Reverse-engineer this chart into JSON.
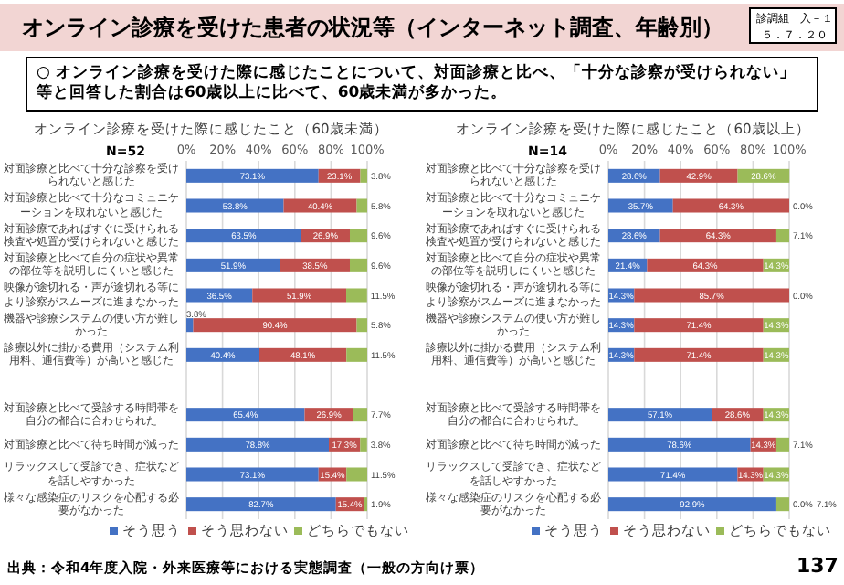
{
  "chart_data": [
    {
      "type": "bar",
      "orientation": "horizontal",
      "stacked": true,
      "title": "オンライン診療を受けた際に感じたこと（60歳未満）",
      "annotations": [
        "オンライン診療を受けた患者の状況等（インターネット調査、年齢別）",
        "診調組　入－１",
        "５．７．２０",
        "○ オンライン診療を受けた際に感じたことについて、対面診療と比べ、「十分な診察が受けられない」等と回答した割合は60歳以上に比べて、60歳未満が多かった。",
        "N=52"
      ],
      "categories": [
        "対面診療と比べて十分な診察を受けられないと感じた",
        "対面診療と比べて十分なコミュニケーションを取れないと感じた",
        "対面診療であればすぐに受けられる検査や処置が受けられないと感じた",
        "対面診療と比べて自分の症状や異常の部位等を説明しにくいと感じた",
        "映像が途切れる・声が途切れる等により診察がスムーズに進まなかった",
        "機器や診療システムの使い方が難しかった",
        "診療以外に掛かる費用（システム利用料、通信費等）が高いと感じた",
        null,
        "対面診療と比べて受診する時間帯を自分の都合に合わせられた",
        "対面診療と比べて待ち時間が減った",
        "リラックスして受診でき、症状などを話しやすかった",
        "様々な感染症のリスクを心配する必要がなかった"
      ],
      "series": [
        {
          "name": "そう思う",
          "color": "#4472c4",
          "values": [
            73.1,
            53.8,
            63.5,
            51.9,
            36.5,
            3.8,
            40.4,
            null,
            65.4,
            78.8,
            73.1,
            82.7
          ],
          "value_labels": [
            "73.1%",
            "53.8%",
            "63.5%",
            "51.9%",
            "36.5%",
            "3.8%",
            "40.4%",
            null,
            "65.4%",
            "78.8%",
            "73.1%",
            "82.7%"
          ]
        },
        {
          "name": "そう思わない",
          "color": "#c0504d",
          "values": [
            23.1,
            40.4,
            26.9,
            38.5,
            51.9,
            90.4,
            48.1,
            null,
            26.9,
            17.3,
            15.4,
            15.4
          ],
          "value_labels": [
            "23.1%",
            "40.4%",
            "26.9%",
            "38.5%",
            "51.9%",
            "90.4%",
            "48.1%",
            null,
            "26.9%",
            "17.3%",
            "15.4%",
            "15.4%"
          ]
        },
        {
          "name": "どちらでもない",
          "color": "#9bbb59",
          "values": [
            3.8,
            5.8,
            9.6,
            9.6,
            11.5,
            5.8,
            11.5,
            null,
            7.7,
            3.8,
            11.5,
            1.9
          ],
          "value_labels": [
            "3.8%",
            "5.8%",
            "9.6%",
            "9.6%",
            "11.5%",
            "5.8%",
            "11.5%",
            null,
            "7.7%",
            "3.8%",
            "11.5%",
            "1.9%"
          ]
        }
      ],
      "xlim": [
        0,
        100
      ],
      "xticks": [
        {
          "value": 0,
          "label": "0%"
        },
        {
          "value": 20,
          "label": "20%"
        },
        {
          "value": 40,
          "label": "40%"
        },
        {
          "value": 60,
          "label": "60%"
        },
        {
          "value": 80,
          "label": "80%"
        },
        {
          "value": 100,
          "label": "100%"
        }
      ],
      "grid": "x",
      "legend": "bottom"
    },
    {
      "type": "bar",
      "orientation": "horizontal",
      "stacked": true,
      "title": "オンライン診療を受けた際に感じたこと（60歳以上）",
      "annotations": [
        "N=14",
        "出典：令和4年度入院・外来医療等における実態調査（一般の方向け票）",
        "137"
      ],
      "categories": [
        "対面診療と比べて十分な診察を受けられないと感じた",
        "対面診療と比べて十分なコミュニケーションを取れないと感じた",
        "対面診療であればすぐに受けられる検査や処置が受けられないと感じた",
        "対面診療と比べて自分の症状や異常の部位等を説明しにくいと感じた",
        "映像が途切れる・声が途切れる等により診察がスムーズに進まなかった",
        "機器や診療システムの使い方が難しかった",
        "診療以外に掛かる費用（システム利用料、通信費等）が高いと感じた",
        null,
        "対面診療と比べて受診する時間帯を自分の都合に合わせられた",
        "対面診療と比べて待ち時間が減った",
        "リラックスして受診でき、症状などを話しやすかった",
        "様々な感染症のリスクを心配する必要がなかった"
      ],
      "series": [
        {
          "name": "そう思う",
          "color": "#4472c4",
          "values": [
            28.6,
            35.7,
            28.6,
            21.4,
            14.3,
            14.3,
            14.3,
            null,
            57.1,
            78.6,
            71.4,
            92.9
          ],
          "value_labels": [
            "28.6%",
            "35.7%",
            "28.6%",
            "21.4%",
            "14.3%",
            "14.3%",
            "14.3%",
            null,
            "57.1%",
            "78.6%",
            "71.4%",
            "92.9%"
          ]
        },
        {
          "name": "そう思わない",
          "color": "#c0504d",
          "values": [
            42.9,
            64.3,
            64.3,
            64.3,
            85.7,
            71.4,
            71.4,
            null,
            28.6,
            14.3,
            14.3,
            0.0
          ],
          "value_labels": [
            "42.9%",
            "64.3%",
            "64.3%",
            "64.3%",
            "85.7%",
            "71.4%",
            "71.4%",
            null,
            "28.6%",
            "14.3%",
            "14.3%",
            "0.0%"
          ]
        },
        {
          "name": "どちらでもない",
          "color": "#9bbb59",
          "values": [
            28.6,
            0.0,
            7.1,
            14.3,
            0.0,
            14.3,
            14.3,
            null,
            14.3,
            7.1,
            14.3,
            7.1
          ],
          "value_labels": [
            "28.6%",
            "0.0%",
            "7.1%",
            "14.3%",
            "0.0%",
            "14.3%",
            "14.3%",
            null,
            "14.3%",
            "7.1%",
            "14.3%",
            "7.1%"
          ]
        }
      ],
      "xlim": [
        0,
        100
      ],
      "xticks": [
        {
          "value": 0,
          "label": "0%"
        },
        {
          "value": 20,
          "label": "20%"
        },
        {
          "value": 40,
          "label": "40%"
        },
        {
          "value": 60,
          "label": "60%"
        },
        {
          "value": 80,
          "label": "80%"
        },
        {
          "value": 100,
          "label": "100%"
        }
      ],
      "grid": "x",
      "legend": "bottom"
    }
  ]
}
